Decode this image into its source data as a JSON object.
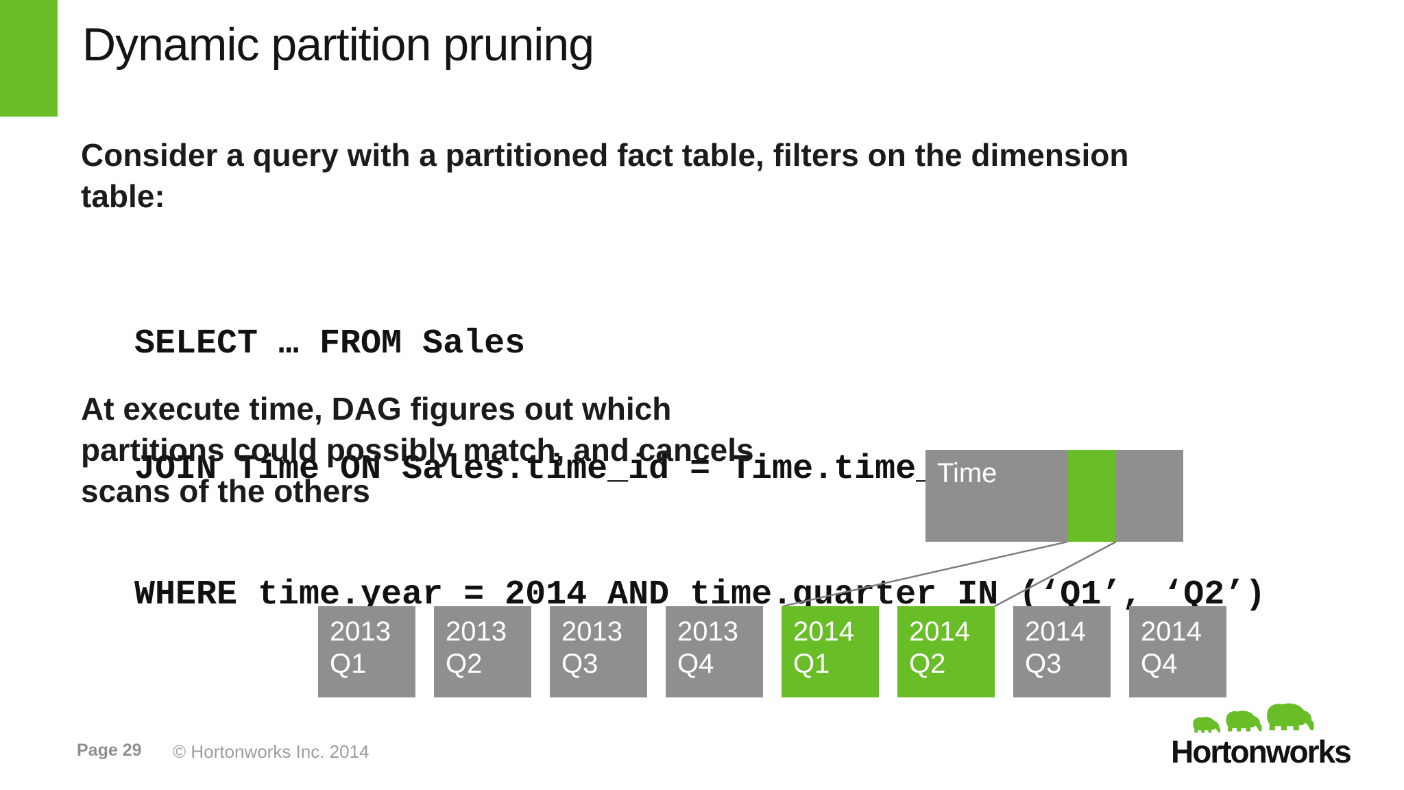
{
  "slide": {
    "title": "Dynamic partition pruning",
    "intro_lines": [
      "Consider a query with a partitioned fact table, filters on the dimension",
      "table:"
    ],
    "code_lines": [
      "SELECT … FROM Sales",
      "JOIN Time ON Sales.time_id = Time.time_id",
      "WHERE time.year = 2014 AND time.quarter IN (‘Q1’, ‘Q2’)"
    ],
    "body_lines": [
      "At execute time, DAG figures out which",
      "partitions could possibly match, and cancels",
      "scans of the others"
    ],
    "diagram": {
      "time_box_label": "Time",
      "highlight_color": "#69BE28",
      "partition_color": "#8F8F8F",
      "partitions": [
        {
          "year": "2013",
          "quarter": "Q1",
          "highlighted": false
        },
        {
          "year": "2013",
          "quarter": "Q2",
          "highlighted": false
        },
        {
          "year": "2013",
          "quarter": "Q3",
          "highlighted": false
        },
        {
          "year": "2013",
          "quarter": "Q4",
          "highlighted": false
        },
        {
          "year": "2014",
          "quarter": "Q1",
          "highlighted": true
        },
        {
          "year": "2014",
          "quarter": "Q2",
          "highlighted": true
        },
        {
          "year": "2014",
          "quarter": "Q3",
          "highlighted": false
        },
        {
          "year": "2014",
          "quarter": "Q4",
          "highlighted": false
        }
      ]
    },
    "footer": {
      "page_label": "Page 29",
      "copyright": "© Hortonworks Inc. 2014"
    },
    "logo": {
      "text": "Hortonworks",
      "icon": "elephants-icon",
      "green": "#69BE28"
    }
  }
}
